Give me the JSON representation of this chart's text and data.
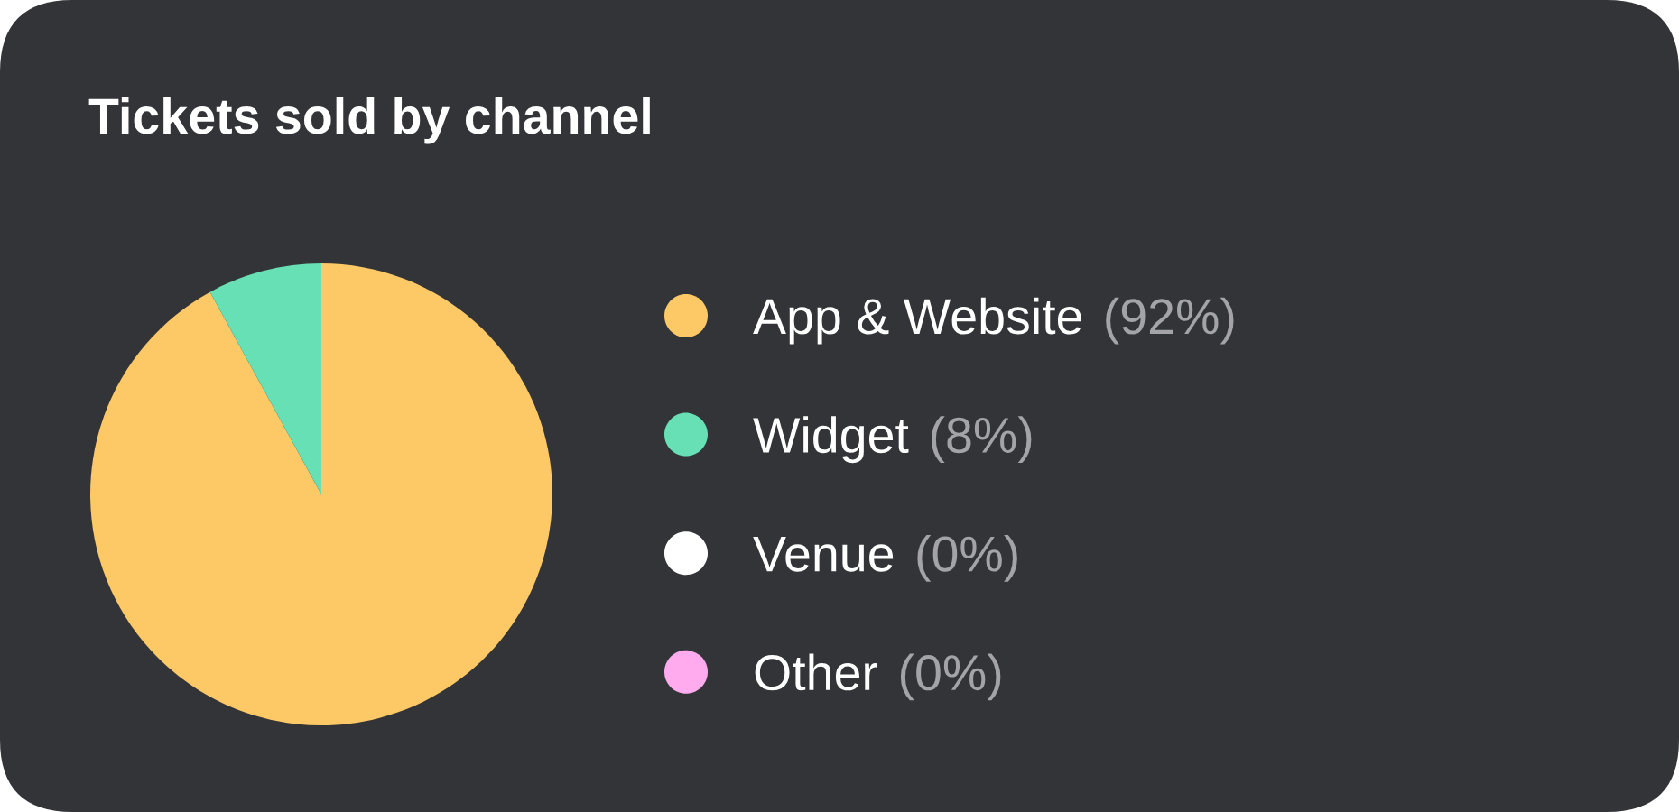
{
  "chart_data": {
    "type": "pie",
    "title": "Tickets sold by channel",
    "categories": [
      "App & Website",
      "Widget",
      "Venue",
      "Other"
    ],
    "values": [
      92,
      8,
      0,
      0
    ],
    "value_labels": [
      "(92%)",
      "(8%)",
      "(0%)",
      "(0%)"
    ],
    "colors": [
      "#fdc866",
      "#66e0b4",
      "#ffffff",
      "#ffabee"
    ],
    "legend": "right"
  }
}
